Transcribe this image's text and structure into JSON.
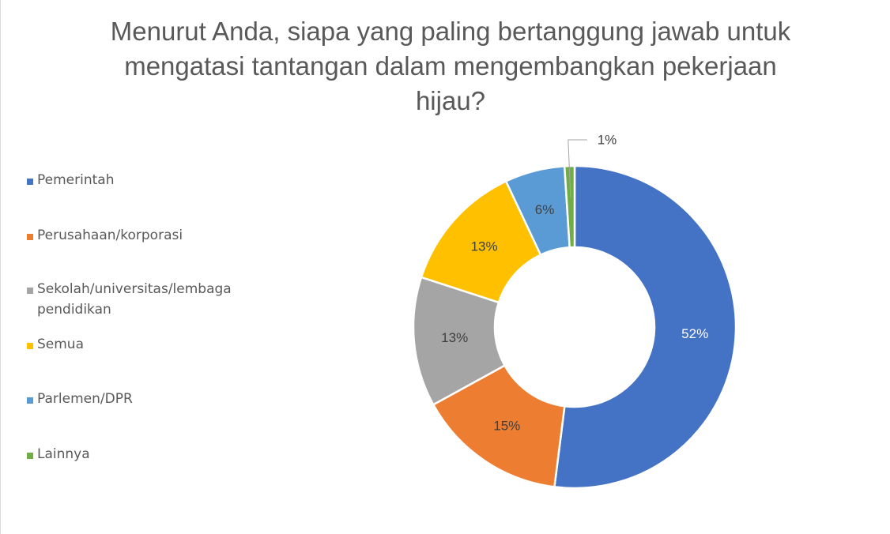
{
  "chart_data": {
    "type": "pie",
    "variant": "donut",
    "title": "Menurut Anda, siapa yang paling bertanggung jawab untuk mengatasi tantangan dalam mengembangkan pekerjaan hijau?",
    "legend_position": "left",
    "categories": [
      "Pemerintah",
      "Perusahaan/korporasi",
      "Sekolah/universitas/lembaga pendidikan",
      "Semua",
      "Parlemen/DPR",
      "Lainnya"
    ],
    "values": [
      52,
      15,
      13,
      13,
      6,
      1
    ],
    "value_labels": [
      "52%",
      "15%",
      "13%",
      "13%",
      "6%",
      "1%"
    ],
    "unit": "%",
    "colors": [
      "#4472C4",
      "#ED7D31",
      "#A5A5A5",
      "#FFC000",
      "#5B9BD5",
      "#70AD47"
    ],
    "label_colors": [
      "#ffffff",
      "#404040",
      "#404040",
      "#404040",
      "#404040",
      "#404040"
    ]
  }
}
